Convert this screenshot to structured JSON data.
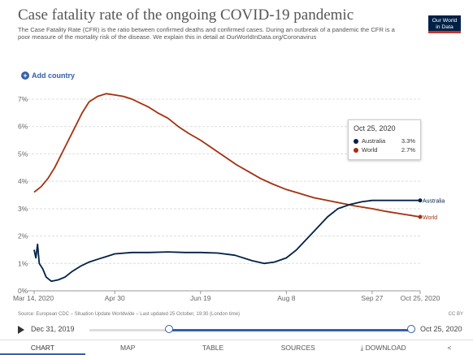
{
  "header": {
    "title": "Case fatality rate of the ongoing COVID-19 pandemic",
    "subtitle": "The Case Fatality Rate (CFR) is the ratio between confirmed deaths and confirmed cases. During an outbreak of a pandemic the CFR is a poor measure of the mortality risk of the disease. We explain this in detail at OurWorldInData.org/Coronavirus",
    "logo_line1": "Our World",
    "logo_line2": "in Data"
  },
  "controls": {
    "add_country": "Add country",
    "plus_icon": "+"
  },
  "tooltip": {
    "date": "Oct 25, 2020",
    "rows": [
      {
        "name": "Australia",
        "value": "3.3%",
        "color": "#002147"
      },
      {
        "name": "World",
        "value": "2.7%",
        "color": "#a2310f"
      }
    ]
  },
  "source": "Source: European CDC – Situation Update Worldwide – Last updated 25 October, 19:30 (London time)",
  "license": "CC BY",
  "timeline": {
    "start_label": "Dec 31, 2019",
    "end_label": "Oct 25, 2020",
    "selection_start": "Mar 14, 2020",
    "selection_end": "Oct 25, 2020"
  },
  "tabs": [
    "CHART",
    "MAP",
    "TABLE",
    "SOURCES",
    "DOWNLOAD",
    "<"
  ],
  "chart_data": {
    "type": "line",
    "title": "Case fatality rate of the ongoing COVID-19 pandemic",
    "y_unit": "%",
    "ylim": [
      0,
      7.5
    ],
    "y_ticks": [
      0,
      1,
      2,
      3,
      4,
      5,
      6,
      7
    ],
    "y_tick_labels": [
      "0%",
      "1%",
      "2%",
      "3%",
      "4%",
      "5%",
      "6%",
      "7%"
    ],
    "x_ticks": [
      "2020-03-14",
      "2020-04-30",
      "2020-06-19",
      "2020-08-08",
      "2020-09-27",
      "2020-10-25"
    ],
    "x_tick_labels": [
      "Mar 14, 2020",
      "Apr 30",
      "Jun 19",
      "Aug 8",
      "Sep 27",
      "Oct 25, 2020"
    ],
    "xlim": [
      "2020-03-14",
      "2020-10-25"
    ],
    "grid": "horizontal",
    "series": [
      {
        "name": "World",
        "color": "#a2310f",
        "points": [
          [
            "2020-03-14",
            3.6
          ],
          [
            "2020-03-18",
            3.8
          ],
          [
            "2020-03-22",
            4.1
          ],
          [
            "2020-03-26",
            4.5
          ],
          [
            "2020-03-30",
            5.0
          ],
          [
            "2020-04-03",
            5.5
          ],
          [
            "2020-04-07",
            6.0
          ],
          [
            "2020-04-11",
            6.5
          ],
          [
            "2020-04-15",
            6.9
          ],
          [
            "2020-04-20",
            7.1
          ],
          [
            "2020-04-25",
            7.2
          ],
          [
            "2020-04-30",
            7.15
          ],
          [
            "2020-05-05",
            7.1
          ],
          [
            "2020-05-10",
            7.0
          ],
          [
            "2020-05-15",
            6.85
          ],
          [
            "2020-05-20",
            6.7
          ],
          [
            "2020-05-25",
            6.5
          ],
          [
            "2020-05-31",
            6.3
          ],
          [
            "2020-06-06",
            6.0
          ],
          [
            "2020-06-12",
            5.75
          ],
          [
            "2020-06-19",
            5.5
          ],
          [
            "2020-06-26",
            5.2
          ],
          [
            "2020-07-03",
            4.9
          ],
          [
            "2020-07-10",
            4.6
          ],
          [
            "2020-07-17",
            4.35
          ],
          [
            "2020-07-24",
            4.1
          ],
          [
            "2020-07-31",
            3.9
          ],
          [
            "2020-08-08",
            3.7
          ],
          [
            "2020-08-16",
            3.55
          ],
          [
            "2020-08-24",
            3.4
          ],
          [
            "2020-09-01",
            3.3
          ],
          [
            "2020-09-09",
            3.2
          ],
          [
            "2020-09-17",
            3.1
          ],
          [
            "2020-09-27",
            3.0
          ],
          [
            "2020-10-05",
            2.9
          ],
          [
            "2020-10-15",
            2.8
          ],
          [
            "2020-10-25",
            2.7
          ]
        ]
      },
      {
        "name": "Australia",
        "color": "#002147",
        "points": [
          [
            "2020-03-14",
            1.5
          ],
          [
            "2020-03-15",
            1.2
          ],
          [
            "2020-03-16",
            1.7
          ],
          [
            "2020-03-17",
            1.0
          ],
          [
            "2020-03-19",
            0.8
          ],
          [
            "2020-03-21",
            0.5
          ],
          [
            "2020-03-24",
            0.35
          ],
          [
            "2020-03-28",
            0.4
          ],
          [
            "2020-04-01",
            0.5
          ],
          [
            "2020-04-05",
            0.7
          ],
          [
            "2020-04-10",
            0.9
          ],
          [
            "2020-04-15",
            1.05
          ],
          [
            "2020-04-20",
            1.15
          ],
          [
            "2020-04-25",
            1.25
          ],
          [
            "2020-04-30",
            1.35
          ],
          [
            "2020-05-10",
            1.4
          ],
          [
            "2020-05-20",
            1.4
          ],
          [
            "2020-05-31",
            1.42
          ],
          [
            "2020-06-10",
            1.4
          ],
          [
            "2020-06-19",
            1.4
          ],
          [
            "2020-06-29",
            1.38
          ],
          [
            "2020-07-09",
            1.3
          ],
          [
            "2020-07-19",
            1.1
          ],
          [
            "2020-07-26",
            1.0
          ],
          [
            "2020-08-01",
            1.05
          ],
          [
            "2020-08-08",
            1.2
          ],
          [
            "2020-08-14",
            1.5
          ],
          [
            "2020-08-20",
            1.9
          ],
          [
            "2020-08-26",
            2.3
          ],
          [
            "2020-09-01",
            2.7
          ],
          [
            "2020-09-07",
            3.0
          ],
          [
            "2020-09-14",
            3.15
          ],
          [
            "2020-09-21",
            3.25
          ],
          [
            "2020-09-27",
            3.3
          ],
          [
            "2020-10-05",
            3.3
          ],
          [
            "2020-10-15",
            3.3
          ],
          [
            "2020-10-25",
            3.3
          ]
        ]
      }
    ],
    "end_labels": [
      "Australia",
      "World"
    ]
  }
}
